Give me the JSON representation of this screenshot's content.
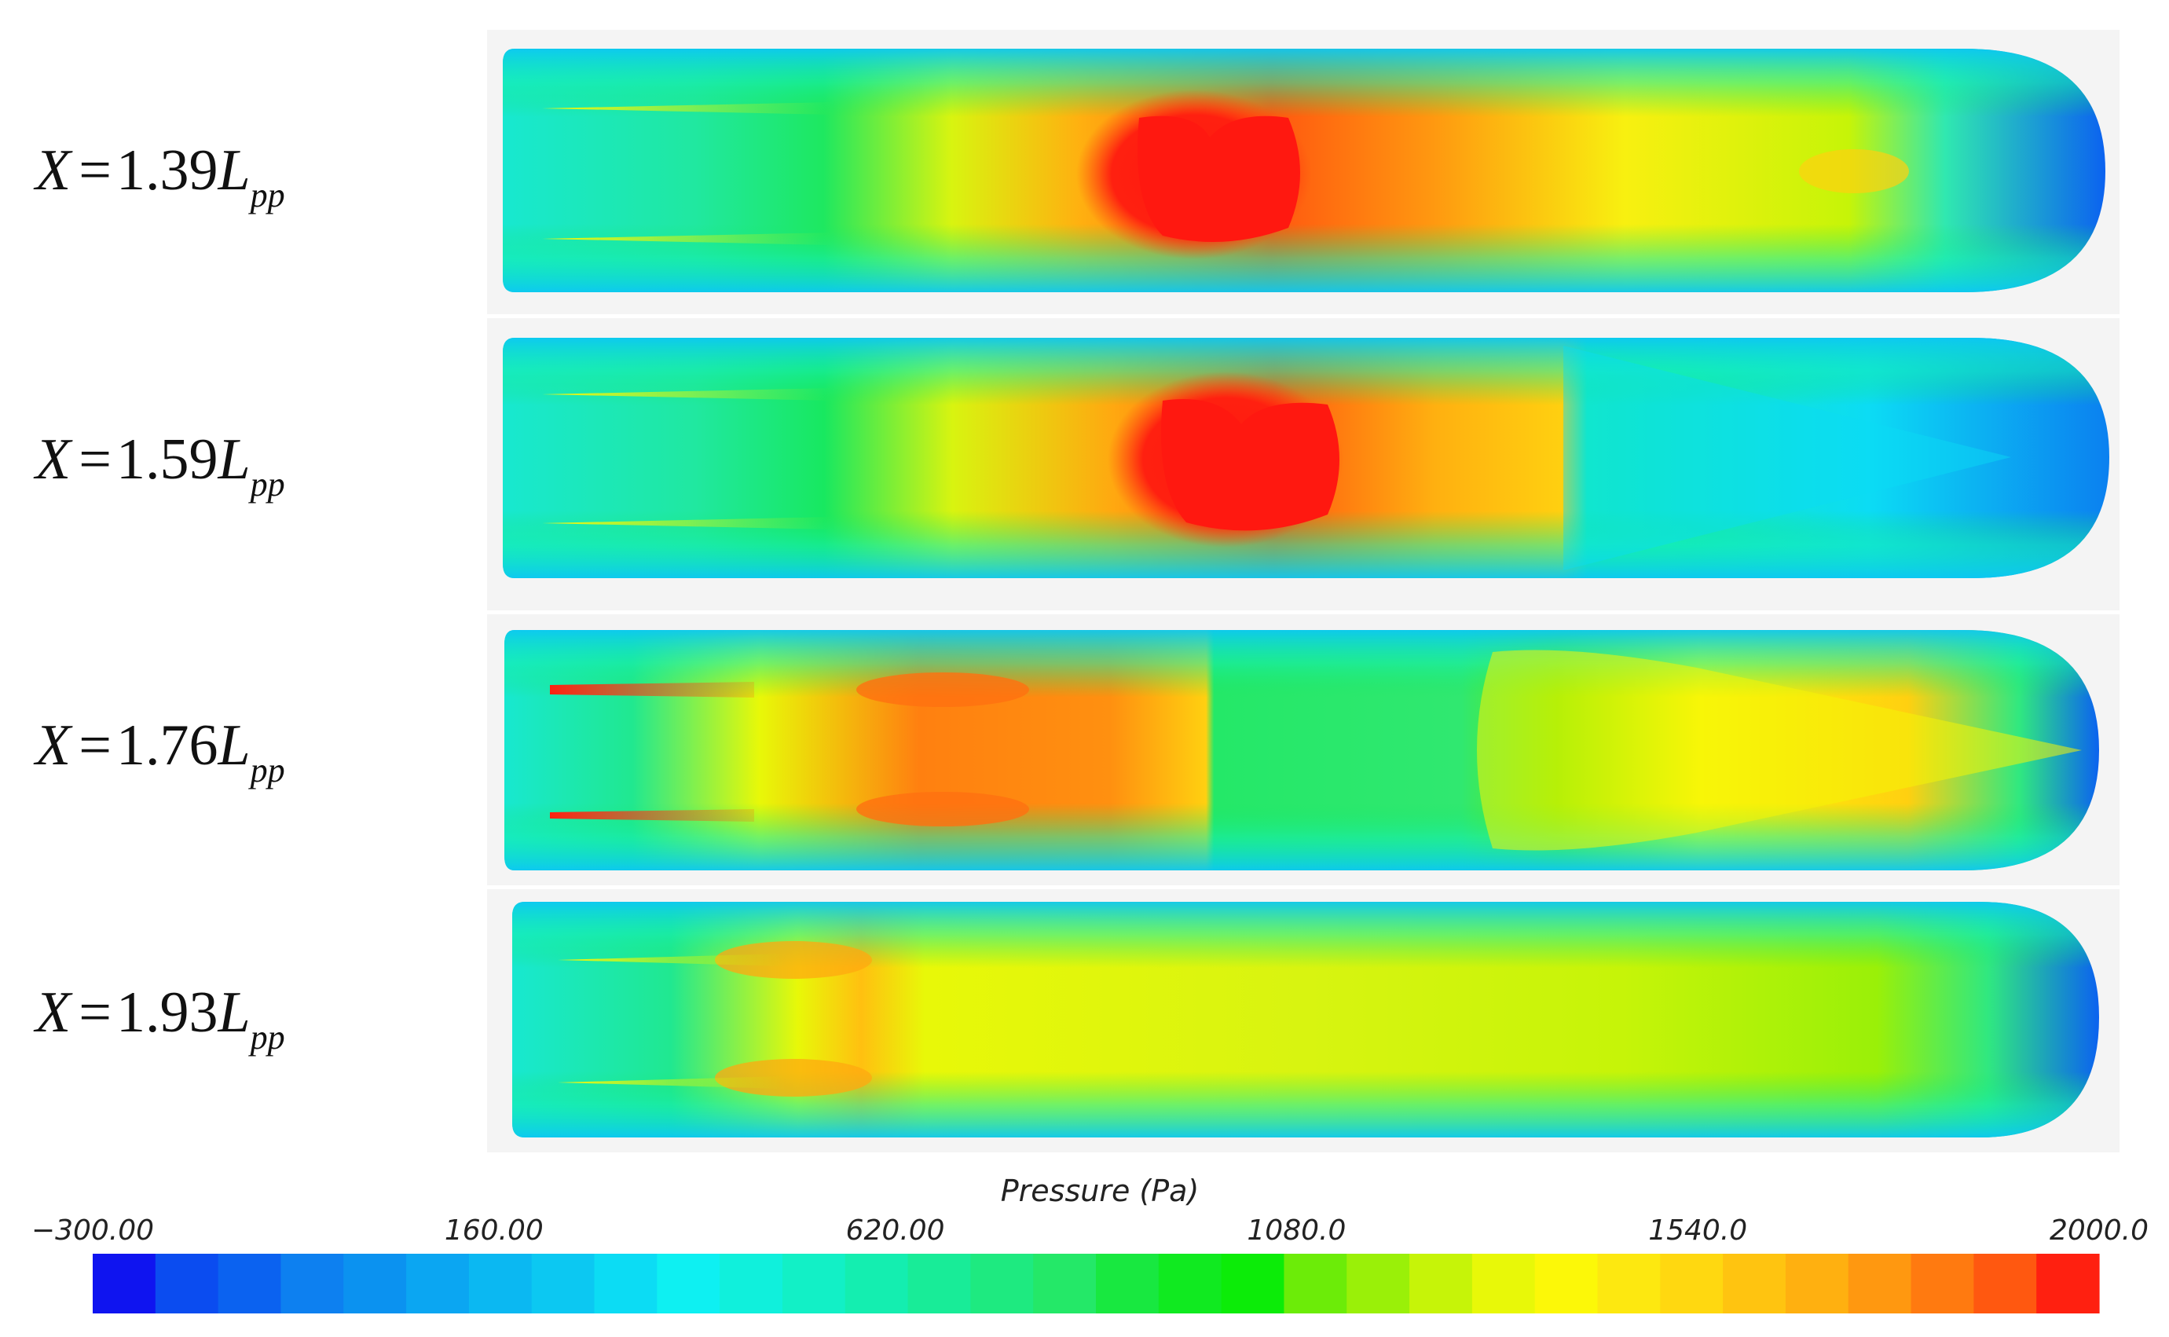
{
  "rows": [
    {
      "label_var": "X",
      "label_eq": "=",
      "label_value": "1.39",
      "label_L": "L",
      "label_sub": "pp"
    },
    {
      "label_var": "X",
      "label_eq": "=",
      "label_value": "1.59",
      "label_L": "L",
      "label_sub": "pp"
    },
    {
      "label_var": "X",
      "label_eq": "=",
      "label_value": "1.76",
      "label_L": "L",
      "label_sub": "pp"
    },
    {
      "label_var": "X",
      "label_eq": "=",
      "label_value": "1.93",
      "label_L": "L",
      "label_sub": "pp"
    }
  ],
  "colorbar": {
    "title": "Pressure (Pa)",
    "min": -300.0,
    "max": 2000.0,
    "tick_labels": [
      "−300.00",
      "160.00",
      "620.00",
      "1080.0",
      "1540.0",
      "2000.0"
    ],
    "tick_values": [
      -300,
      160,
      620,
      1080,
      1540,
      2000
    ],
    "colors": [
      "#0f14f0",
      "#0b4cf0",
      "#0b62f0",
      "#0d80f0",
      "#0b92f0",
      "#0ba6f2",
      "#0bb8f2",
      "#0cc8f2",
      "#0cdcf4",
      "#0ef0f2",
      "#10f0dc",
      "#12f0c6",
      "#14eeb0",
      "#18ec98",
      "#1eea80",
      "#24e868",
      "#18e840",
      "#10ea20",
      "#0cec08",
      "#6cec08",
      "#9af008",
      "#c6f408",
      "#e8f808",
      "#fcf808",
      "#fde810",
      "#ffd810",
      "#ffc410",
      "#ffb010",
      "#ff9810",
      "#ff7a10",
      "#ff5810",
      "#ff2010"
    ]
  }
}
